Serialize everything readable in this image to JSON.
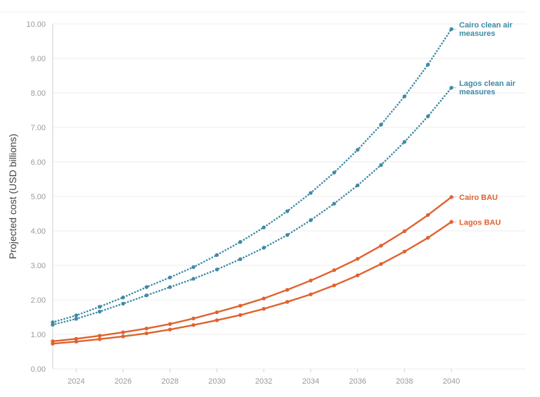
{
  "chart_data": {
    "type": "line",
    "title": "",
    "xlabel": "",
    "ylabel": "Projected cost (USD billions)",
    "xlim": [
      2023,
      2040
    ],
    "ylim": [
      0,
      10
    ],
    "x": [
      2023,
      2024,
      2025,
      2026,
      2027,
      2028,
      2029,
      2030,
      2031,
      2032,
      2033,
      2034,
      2035,
      2036,
      2037,
      2038,
      2039,
      2040
    ],
    "x_ticks": [
      "2024",
      "2026",
      "2028",
      "2030",
      "2032",
      "2034",
      "2036",
      "2038",
      "2040"
    ],
    "y_ticks": [
      "0.00",
      "1.00",
      "2.00",
      "3.00",
      "4.00",
      "5.00",
      "6.00",
      "7.00",
      "8.00",
      "9.00",
      "10.00"
    ],
    "grid": true,
    "legend": "direct labels at line ends (right)",
    "series": [
      {
        "name": "Cairo clean air measures",
        "label_lines": [
          "Cairo clean air",
          "measures"
        ],
        "color": "#3f8aa6",
        "style": "dotted",
        "values": [
          1.35,
          1.55,
          1.8,
          2.07,
          2.37,
          2.65,
          2.95,
          3.3,
          3.68,
          4.1,
          4.57,
          5.1,
          5.69,
          6.35,
          7.08,
          7.9,
          8.82,
          9.85
        ]
      },
      {
        "name": "Lagos clean air measures",
        "label_lines": [
          "Lagos clean air",
          "measures"
        ],
        "color": "#3f8aa6",
        "style": "dotted",
        "values": [
          1.28,
          1.45,
          1.66,
          1.89,
          2.13,
          2.37,
          2.61,
          2.88,
          3.18,
          3.51,
          3.88,
          4.31,
          4.79,
          5.32,
          5.91,
          6.58,
          7.32,
          8.15
        ]
      },
      {
        "name": "Cairo BAU",
        "label_lines": [
          "Cairo BAU"
        ],
        "color": "#e0622e",
        "style": "solid",
        "values": [
          0.8,
          0.87,
          0.96,
          1.06,
          1.17,
          1.3,
          1.46,
          1.64,
          1.83,
          2.04,
          2.29,
          2.56,
          2.86,
          3.19,
          3.57,
          3.99,
          4.46,
          4.98
        ]
      },
      {
        "name": "Lagos BAU",
        "label_lines": [
          "Lagos BAU"
        ],
        "color": "#e0622e",
        "style": "solid",
        "values": [
          0.73,
          0.79,
          0.86,
          0.94,
          1.03,
          1.14,
          1.27,
          1.41,
          1.56,
          1.74,
          1.94,
          2.16,
          2.42,
          2.71,
          3.04,
          3.4,
          3.8,
          4.26
        ]
      }
    ]
  }
}
